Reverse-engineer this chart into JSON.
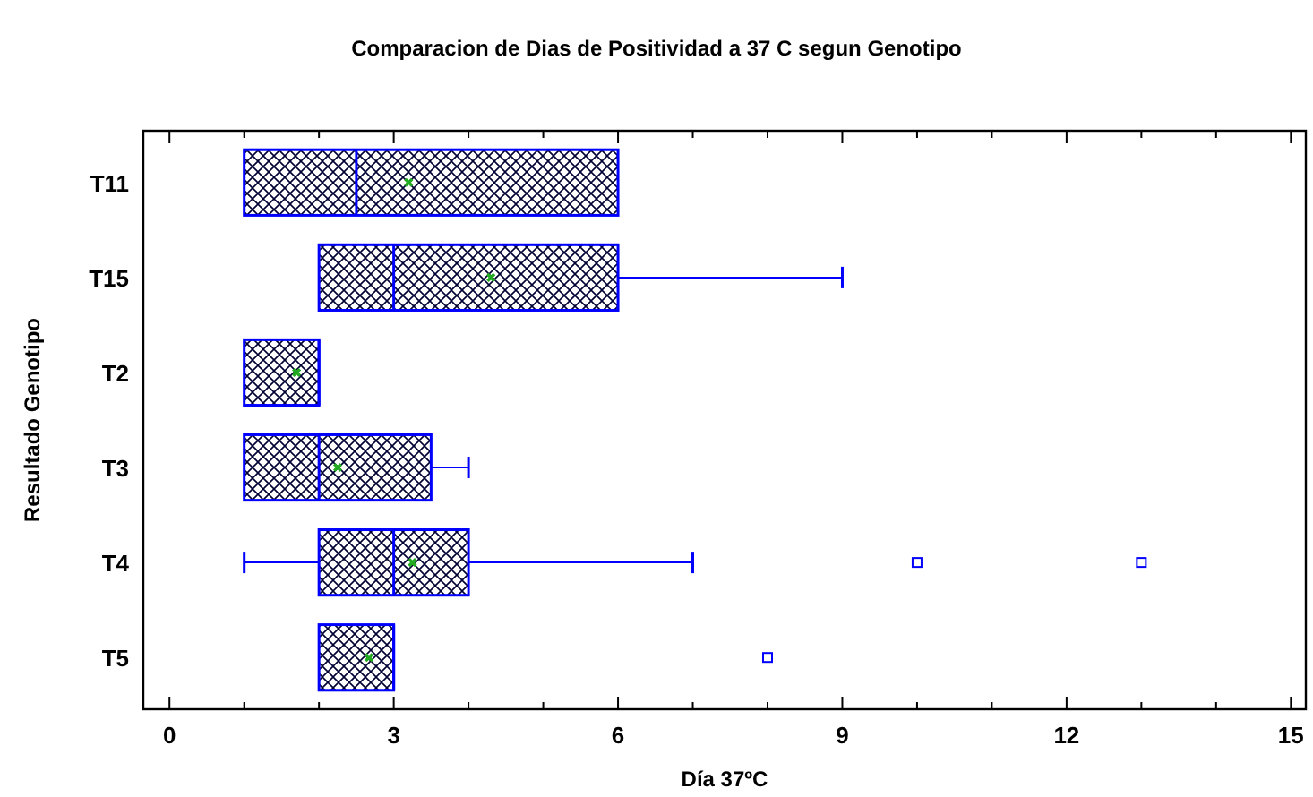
{
  "chart_data": {
    "type": "box",
    "orientation": "horizontal",
    "title": "Comparacion de Dias de Positividad a 37 C segun Genotipo",
    "xlabel": "Día 37ºC",
    "ylabel": "Resultado Genotipo",
    "categories": [
      "T11",
      "T15",
      "T2",
      "T3",
      "T4",
      "T5"
    ],
    "boxes": [
      {
        "low": 1,
        "q1": 1,
        "median": 2.5,
        "q3": 6,
        "high": 6,
        "mean": 3.2
      },
      {
        "low": 2,
        "q1": 2,
        "median": 3,
        "q3": 6,
        "high": 9,
        "mean": 4.3
      },
      {
        "low": 1,
        "q1": 1,
        "median": 2,
        "q3": 2,
        "high": 2,
        "mean": 1.7
      },
      {
        "low": 1,
        "q1": 1,
        "median": 2,
        "q3": 3.5,
        "high": 4,
        "mean": 2.25
      },
      {
        "low": 1,
        "q1": 2,
        "median": 3,
        "q3": 4,
        "high": 7,
        "mean": 3.25,
        "outliers": [
          10,
          13
        ]
      },
      {
        "low": 2,
        "q1": 2,
        "median": 3,
        "q3": 3,
        "high": 3,
        "mean": 2.67,
        "outliers": [
          8
        ]
      }
    ],
    "color": "#0000ff",
    "xlim": [
      -0.35,
      15.2
    ],
    "xticks": [
      0,
      {
        "value": 1,
        "label": null
      },
      {
        "value": 2,
        "label": null
      },
      3,
      {
        "value": 4,
        "label": null
      },
      {
        "value": 5,
        "label": null
      },
      6,
      {
        "value": 7,
        "label": null
      },
      {
        "value": 8,
        "label": null
      },
      9,
      {
        "value": 10,
        "label": null
      },
      {
        "value": 11,
        "label": null
      },
      12,
      {
        "value": 13,
        "label": null
      },
      {
        "value": 14,
        "label": null
      },
      15
    ],
    "grid": false
  }
}
